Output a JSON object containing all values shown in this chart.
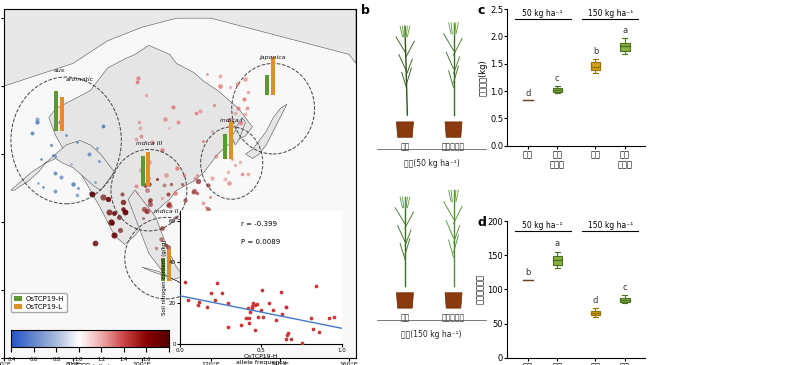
{
  "panel_c": {
    "label": "c",
    "ylabel": "小区产量(kg)",
    "ylim": [
      0,
      2.5
    ],
    "yticks": [
      0,
      0.5,
      1.0,
      1.5,
      2.0,
      2.5
    ],
    "xticklabels": [
      [
        "越光",
        ""
      ],
      [
        "近等",
        "基因系"
      ],
      [
        "越光",
        ""
      ],
      [
        "近等",
        "基因系"
      ]
    ],
    "xticklabels_flat": [
      "越光",
      "近等基因系",
      "越光",
      "近等基因系"
    ],
    "bracket_labels": [
      "50 kg ha⁻¹",
      "150 kg ha⁻¹"
    ],
    "sig_labels": [
      "d",
      "c",
      "b",
      "a"
    ],
    "boxes": [
      {
        "whisker_low": 0.83,
        "q1": 0.83,
        "median": 0.83,
        "q3": 0.83,
        "whisker_high": 0.83,
        "color": "#a07040",
        "edge": "#6B4423"
      },
      {
        "whisker_low": 0.975,
        "q1": 0.99,
        "median": 1.03,
        "q3": 1.065,
        "whisker_high": 1.085,
        "color": "#8ab040",
        "edge": "#4A7020"
      },
      {
        "whisker_low": 1.34,
        "q1": 1.39,
        "median": 1.45,
        "q3": 1.53,
        "whisker_high": 1.58,
        "color": "#d4a020",
        "edge": "#9A7000"
      },
      {
        "whisker_low": 1.68,
        "q1": 1.74,
        "median": 1.82,
        "q3": 1.88,
        "whisker_high": 1.97,
        "color": "#8ab040",
        "edge": "#4A7020"
      }
    ]
  },
  "panel_d": {
    "label": "d",
    "ylabel": "氮肥利用效率",
    "ylim": [
      0,
      200
    ],
    "yticks": [
      0,
      50,
      100,
      150,
      200
    ],
    "xticklabels_flat": [
      "越光",
      "近等基因系",
      "越光",
      "近等基因系"
    ],
    "bracket_labels": [
      "50 kg ha⁻¹",
      "150 kg ha⁻¹"
    ],
    "sig_labels": [
      "b",
      "a",
      "d",
      "c"
    ],
    "boxes": [
      {
        "whisker_low": 113,
        "q1": 113,
        "median": 113,
        "q3": 113,
        "whisker_high": 113,
        "color": "#a07040",
        "edge": "#6B4423"
      },
      {
        "whisker_low": 131,
        "q1": 136,
        "median": 143,
        "q3": 149,
        "whisker_high": 155,
        "color": "#8ab040",
        "edge": "#4A7020"
      },
      {
        "whisker_low": 60,
        "q1": 63,
        "median": 66,
        "q3": 69,
        "whisker_high": 73,
        "color": "#d4a020",
        "edge": "#9A7000"
      },
      {
        "whisker_low": 80,
        "q1": 82,
        "median": 85,
        "q3": 88,
        "whisker_high": 92,
        "color": "#8ab040",
        "edge": "#4A7020"
      }
    ]
  },
  "background_color": "#ffffff"
}
